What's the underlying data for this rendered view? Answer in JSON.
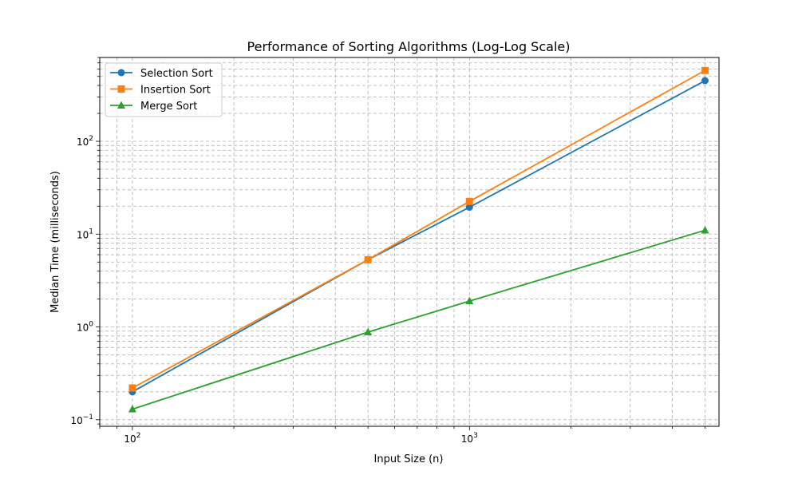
{
  "chart_data": {
    "type": "line",
    "title": "Performance of Sorting Algorithms (Log-Log Scale)",
    "xlabel": "Input Size (n)",
    "ylabel": "Median Time (milliseconds)",
    "xscale": "log",
    "yscale": "log",
    "xlim": [
      80,
      5500
    ],
    "ylim": [
      0.085,
      800
    ],
    "grid": true,
    "legend_position": "top-left",
    "x": [
      100,
      500,
      1000,
      5000
    ],
    "x_ticks": [
      {
        "value": 100,
        "base": "10",
        "exp": "2"
      },
      {
        "value": 1000,
        "base": "10",
        "exp": "3"
      }
    ],
    "y_ticks": [
      {
        "value": 0.1,
        "base": "10",
        "exp": "−1"
      },
      {
        "value": 1,
        "base": "10",
        "exp": "0"
      },
      {
        "value": 10,
        "base": "10",
        "exp": "1"
      },
      {
        "value": 100,
        "base": "10",
        "exp": "2"
      }
    ],
    "series": [
      {
        "name": "Selection Sort",
        "color": "#1f77b4",
        "marker": "circle",
        "values": [
          0.2,
          5.3,
          19.5,
          450
        ]
      },
      {
        "name": "Insertion Sort",
        "color": "#ff7f0e",
        "marker": "square",
        "values": [
          0.22,
          5.3,
          22.5,
          580
        ]
      },
      {
        "name": "Merge Sort",
        "color": "#2ca02c",
        "marker": "triangle",
        "values": [
          0.13,
          0.88,
          1.9,
          11
        ]
      }
    ]
  }
}
